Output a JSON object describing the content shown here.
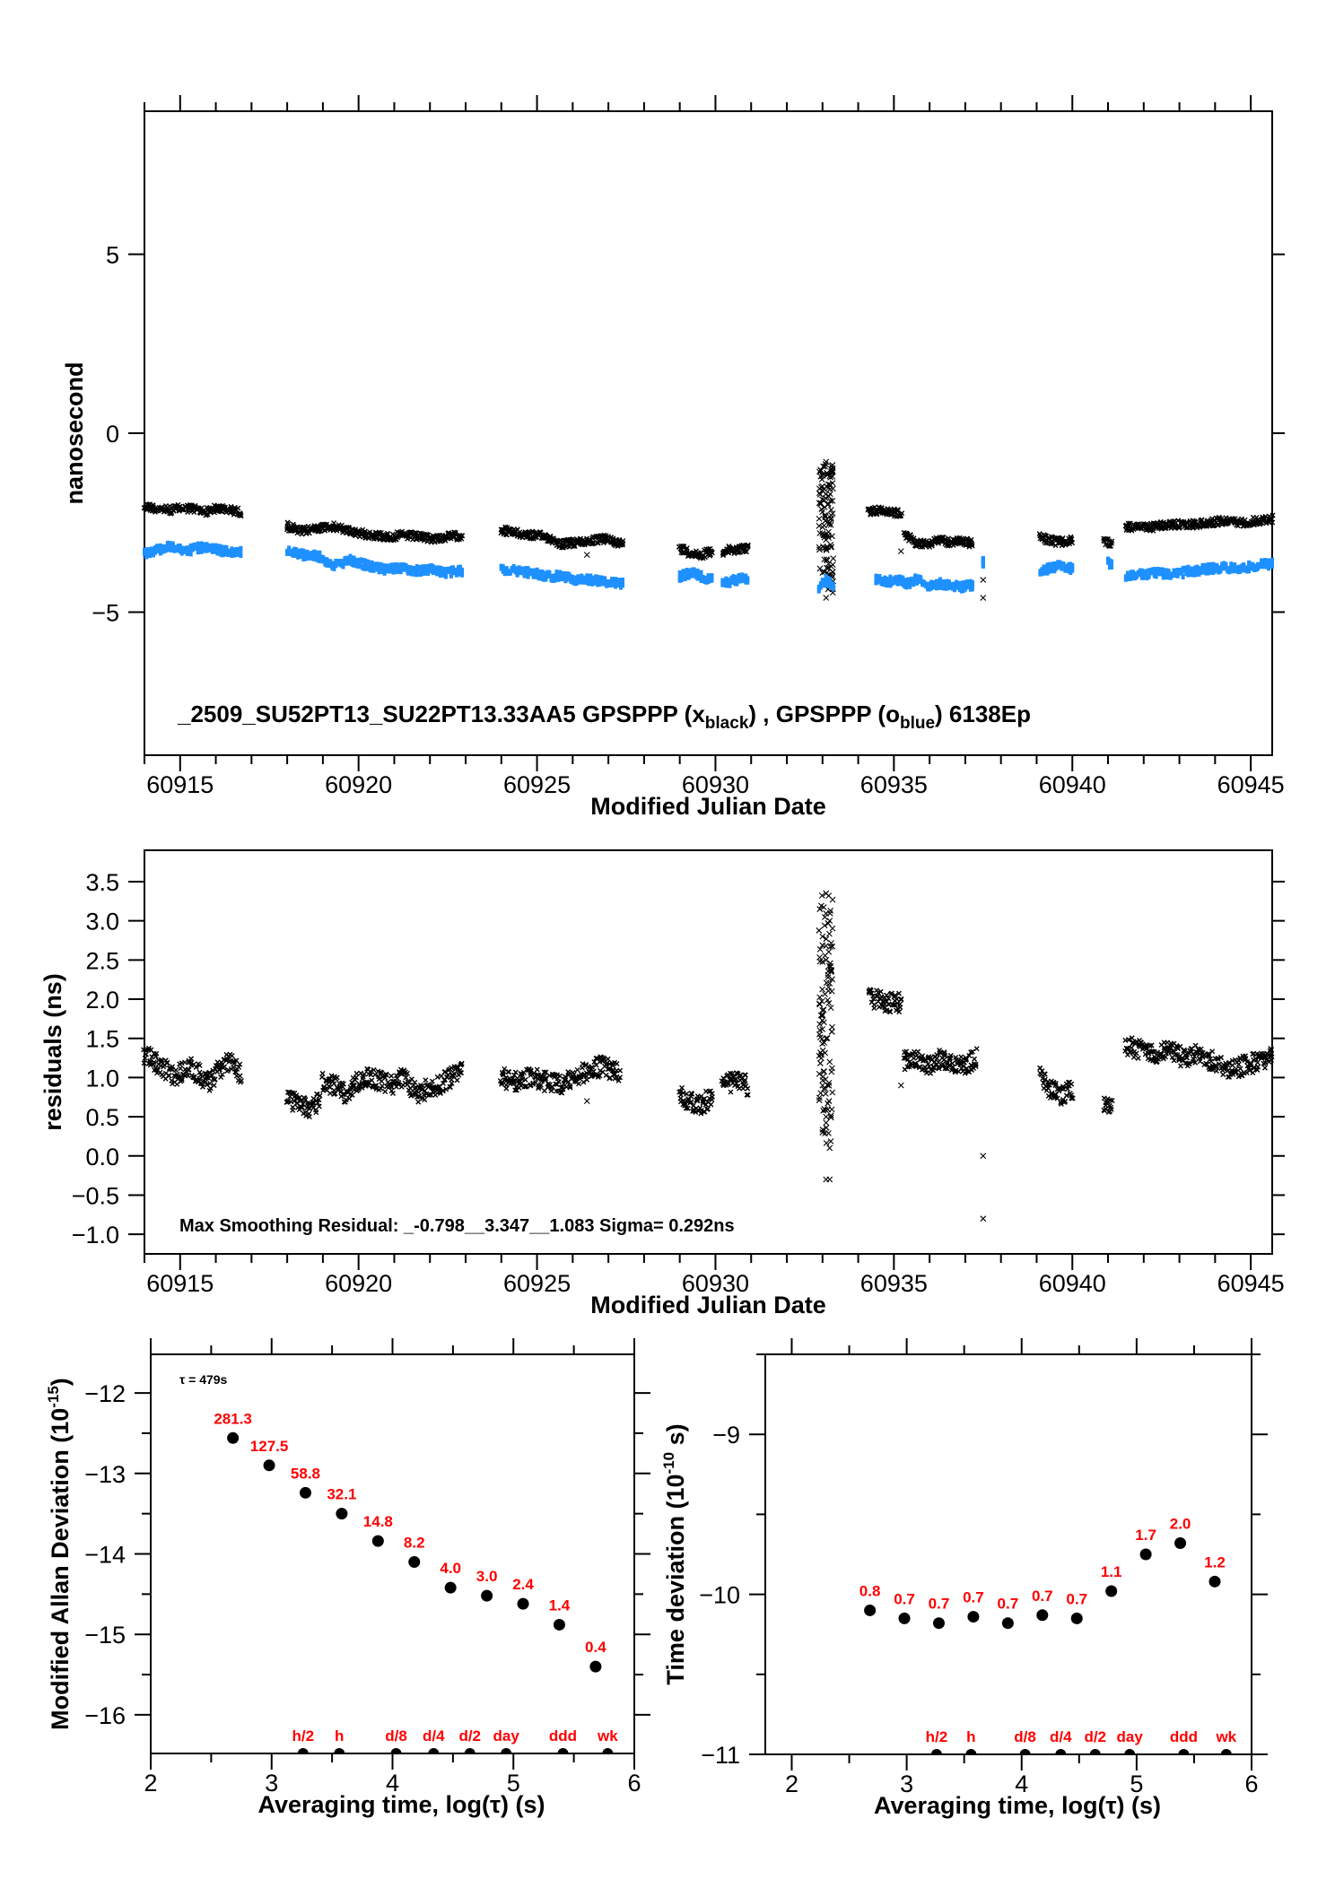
{
  "chart_data": [
    {
      "id": "phase",
      "type": "scatter",
      "title": "_2509_SU52PT13_SU22PT13.33AA5    GPSPPP (x_black) ,  GPSPPP (o_blue)  6138Ep",
      "annotation": {
        "prefix": "_2509_SU52PT13_SU22PT13.33AA5",
        "series1": "GPSPPP (",
        "series1_marker": "x",
        "series1_sub": "black",
        "sep": ") ,  GPSPPP (",
        "series2_marker": "o",
        "series2_sub": "blue",
        "suffix": ")  6138Ep"
      },
      "xlabel": "Modified Julian Date",
      "ylabel": "nanosecond",
      "xlim": [
        60914.0,
        60945.6
      ],
      "ylim": [
        -9,
        9
      ],
      "xticks": [
        60915,
        60920,
        60925,
        60930,
        60935,
        60940,
        60945
      ],
      "yticks": [
        -5,
        0,
        5
      ],
      "series": [
        {
          "name": "GPSPPP (x_black)",
          "marker": "x",
          "color": "#000000",
          "segments": [
            {
              "x0": 60914.0,
              "x1": 60916.7,
              "y": [
                -2.05,
                -2.1,
                -2.15,
                -2.1,
                -2.1,
                -2.2,
                -2.1,
                -2.15,
                -2.2
              ]
            },
            {
              "x0": 60918.0,
              "x1": 60922.9,
              "y": [
                -2.6,
                -2.75,
                -2.65,
                -2.6,
                -2.7,
                -2.8,
                -2.85,
                -2.9,
                -2.85,
                -2.9,
                -2.95,
                -2.9,
                -2.85
              ]
            },
            {
              "x0": 60924.0,
              "x1": 60927.4,
              "y": [
                -2.7,
                -2.8,
                -2.85,
                -2.9,
                -3.1,
                -3.05,
                -3.0,
                -2.95,
                -3.1
              ]
            },
            {
              "x0": 60929.0,
              "x1": 60929.9,
              "y": [
                -3.2,
                -3.35,
                -3.4,
                -3.3
              ]
            },
            {
              "x0": 60930.2,
              "x1": 60930.9,
              "y": [
                -3.3,
                -3.25,
                -3.2
              ]
            },
            {
              "x0": 60934.3,
              "x1": 60935.2,
              "y": [
                -2.2,
                -2.15,
                -2.2,
                -2.25
              ]
            },
            {
              "x0": 60935.3,
              "x1": 60937.2,
              "y": [
                -2.85,
                -3.05,
                -3.1,
                -3.0,
                -3.05,
                -3.0,
                -3.1
              ]
            },
            {
              "x0": 60939.1,
              "x1": 60940.0,
              "y": [
                -2.9,
                -3.0,
                -3.05,
                -3.0
              ]
            },
            {
              "x0": 60940.9,
              "x1": 60941.1,
              "y": [
                -3.0,
                -3.1
              ]
            },
            {
              "x0": 60941.5,
              "x1": 60945.6,
              "y": [
                -2.6,
                -2.65,
                -2.6,
                -2.55,
                -2.55,
                -2.5,
                -2.45,
                -2.5,
                -2.45,
                -2.4
              ]
            }
          ],
          "outliers": [
            [
              60933.1,
              -0.8
            ],
            [
              60933.2,
              -1.2
            ],
            [
              60933.0,
              -1.6
            ],
            [
              60933.15,
              -2.0
            ],
            [
              60933.2,
              -2.5
            ],
            [
              60933.0,
              -2.8
            ],
            [
              60933.1,
              -3.2
            ],
            [
              60933.3,
              -3.5
            ],
            [
              60933.0,
              -3.9
            ],
            [
              60933.2,
              -4.3
            ],
            [
              60933.1,
              -4.6
            ],
            [
              60935.2,
              -3.3
            ],
            [
              60937.5,
              -4.1
            ],
            [
              60937.5,
              -4.6
            ],
            [
              60926.4,
              -3.4
            ]
          ],
          "spike": {
            "x0": 60932.9,
            "x1": 60933.3,
            "y_top": -0.8,
            "y_bottom": -4.5
          }
        },
        {
          "name": "GPSPPP (o_blue)",
          "marker": "o",
          "color": "#1e90ff",
          "segments": [
            {
              "x0": 60914.0,
              "x1": 60916.7,
              "y": [
                -3.35,
                -3.25,
                -3.15,
                -3.3,
                -3.2,
                -3.25,
                -3.3,
                -3.3
              ]
            },
            {
              "x0": 60918.0,
              "x1": 60922.9,
              "y": [
                -3.3,
                -3.4,
                -3.45,
                -3.7,
                -3.55,
                -3.7,
                -3.8,
                -3.75,
                -3.85,
                -3.8,
                -3.9,
                -3.85
              ]
            },
            {
              "x0": 60924.0,
              "x1": 60927.4,
              "y": [
                -3.8,
                -3.85,
                -3.9,
                -4.0,
                -4.0,
                -4.1,
                -4.1,
                -4.15,
                -4.2
              ]
            },
            {
              "x0": 60929.0,
              "x1": 60929.9,
              "y": [
                -4.0,
                -3.9,
                -4.0,
                -4.1
              ]
            },
            {
              "x0": 60930.2,
              "x1": 60930.9,
              "y": [
                -4.2,
                -4.1,
                -4.05
              ]
            },
            {
              "x0": 60932.9,
              "x1": 60933.3,
              "y": [
                -4.3,
                -4.1,
                -4.25
              ]
            },
            {
              "x0": 60934.5,
              "x1": 60937.2,
              "y": [
                -4.1,
                -4.15,
                -4.1,
                -4.2,
                -4.05,
                -4.3,
                -4.2,
                -4.25,
                -4.3,
                -4.25
              ]
            },
            {
              "x0": 60937.5,
              "x1": 60937.5,
              "y": [
                -3.6
              ]
            },
            {
              "x0": 60939.1,
              "x1": 60940.0,
              "y": [
                -3.9,
                -3.75,
                -3.7,
                -3.8
              ]
            },
            {
              "x0": 60941.0,
              "x1": 60941.1,
              "y": [
                -3.6,
                -3.7
              ]
            },
            {
              "x0": 60941.5,
              "x1": 60945.6,
              "y": [
                -4.0,
                -3.95,
                -3.9,
                -3.95,
                -3.85,
                -3.8,
                -3.75,
                -3.8,
                -3.7,
                -3.65
              ]
            }
          ]
        }
      ]
    },
    {
      "id": "residuals",
      "type": "scatter",
      "xlabel": "Modified Julian Date",
      "ylabel": "residuals (ns)",
      "annotation": "Max Smoothing Residual: _-0.798__3.347__1.083  Sigma= 0.292ns",
      "xlim": [
        60914.0,
        60945.6
      ],
      "ylim": [
        -1.25,
        3.9
      ],
      "xticks": [
        60915,
        60920,
        60925,
        60930,
        60935,
        60940,
        60945
      ],
      "yticks": [
        -1.0,
        -0.5,
        0.0,
        0.5,
        1.0,
        1.5,
        2.0,
        2.5,
        3.0,
        3.5
      ],
      "ytick_labels": [
        "−1.0",
        "−0.5",
        "0.0",
        "0.5",
        "1.0",
        "1.5",
        "2.0",
        "2.5",
        "3.0",
        "3.5"
      ],
      "series": [
        {
          "name": "residuals",
          "marker": "x",
          "color": "#000000",
          "segments": [
            {
              "x0": 60914.0,
              "x1": 60916.7,
              "y": [
                1.3,
                1.2,
                1.1,
                1.0,
                1.15,
                1.05,
                0.95,
                1.1,
                1.2,
                1.05
              ]
            },
            {
              "x0": 60918.0,
              "x1": 60918.9,
              "y": [
                0.75,
                0.65,
                0.6,
                0.7
              ]
            },
            {
              "x0": 60919.0,
              "x1": 60922.9,
              "y": [
                0.95,
                0.9,
                0.8,
                0.95,
                1.0,
                0.95,
                0.9,
                1.0,
                0.8,
                0.85,
                0.9,
                1.0,
                1.15
              ]
            },
            {
              "x0": 60924.0,
              "x1": 60927.3,
              "y": [
                1.0,
                0.95,
                1.0,
                0.95,
                0.9,
                1.0,
                1.1,
                1.15,
                1.05
              ]
            },
            {
              "x0": 60929.0,
              "x1": 60929.9,
              "y": [
                0.8,
                0.7,
                0.65,
                0.75
              ]
            },
            {
              "x0": 60930.2,
              "x1": 60930.9,
              "y": [
                0.9,
                0.95,
                0.9
              ]
            },
            {
              "x0": 60934.3,
              "x1": 60935.2,
              "y": [
                2.0,
                2.0,
                1.95,
                1.95
              ]
            },
            {
              "x0": 60935.3,
              "x1": 60937.3,
              "y": [
                1.2,
                1.25,
                1.15,
                1.25,
                1.2,
                1.15,
                1.25
              ]
            },
            {
              "x0": 60939.1,
              "x1": 60940.0,
              "y": [
                1.0,
                0.85,
                0.75,
                0.85
              ]
            },
            {
              "x0": 60940.9,
              "x1": 60941.1,
              "y": [
                0.7,
                0.6
              ]
            },
            {
              "x0": 60941.5,
              "x1": 60945.6,
              "y": [
                1.4,
                1.35,
                1.3,
                1.35,
                1.25,
                1.3,
                1.2,
                1.1,
                1.15,
                1.2,
                1.25
              ]
            }
          ],
          "outliers": [
            [
              60933.1,
              3.35
            ],
            [
              60933.2,
              3.0
            ],
            [
              60933.0,
              2.8
            ],
            [
              60933.1,
              2.5
            ],
            [
              60933.2,
              2.2
            ],
            [
              60933.0,
              1.8
            ],
            [
              60933.1,
              1.5
            ],
            [
              60933.2,
              1.2
            ],
            [
              60933.0,
              0.9
            ],
            [
              60933.1,
              0.5
            ],
            [
              60933.0,
              0.3
            ],
            [
              60933.2,
              0.1
            ],
            [
              60933.1,
              -0.3
            ],
            [
              60933.2,
              -0.3
            ],
            [
              60937.5,
              0.0
            ],
            [
              60937.5,
              -0.8
            ],
            [
              60926.4,
              0.7
            ],
            [
              60935.2,
              0.9
            ]
          ],
          "spike": {
            "x0": 60932.9,
            "x1": 60933.3,
            "y_top": 3.35,
            "y_bottom": 0.1
          }
        }
      ]
    },
    {
      "id": "mdev",
      "type": "scatter",
      "xlabel": "Averaging time, log(τ) (s)",
      "ylabel": "Modified Allan Deviation (10⁻¹⁵)",
      "ylabel_main": "Modified Allan Deviation (10",
      "ylabel_sup": "-15",
      "ylabel_end": ")",
      "tau_label": "τ = 479s",
      "xlim": [
        2,
        6
      ],
      "ylim": [
        -16.48,
        -11.52
      ],
      "xticks": [
        2,
        3,
        4,
        5,
        6
      ],
      "yticks": [
        -16,
        -15,
        -14,
        -13,
        -12
      ],
      "ytick_labels": [
        "−16",
        "−15",
        "−14",
        "−13",
        "−12"
      ],
      "points": [
        {
          "x": 2.68,
          "y": -12.56,
          "label": "281.3"
        },
        {
          "x": 2.98,
          "y": -12.9,
          "label": "127.5"
        },
        {
          "x": 3.28,
          "y": -13.24,
          "label": "58.8"
        },
        {
          "x": 3.58,
          "y": -13.5,
          "label": "32.1"
        },
        {
          "x": 3.88,
          "y": -13.84,
          "label": "14.8"
        },
        {
          "x": 4.18,
          "y": -14.1,
          "label": "8.2"
        },
        {
          "x": 4.48,
          "y": -14.42,
          "label": "4.0"
        },
        {
          "x": 4.78,
          "y": -14.52,
          "label": "3.0"
        },
        {
          "x": 5.08,
          "y": -14.62,
          "label": "2.4"
        },
        {
          "x": 5.38,
          "y": -14.88,
          "label": "1.4"
        },
        {
          "x": 5.68,
          "y": -15.4,
          "label": "0.4"
        }
      ],
      "markers": [
        {
          "x": 3.26,
          "label": "h/2"
        },
        {
          "x": 3.56,
          "label": "h"
        },
        {
          "x": 4.03,
          "label": "d/8"
        },
        {
          "x": 4.34,
          "label": "d/4"
        },
        {
          "x": 4.64,
          "label": "d/2"
        },
        {
          "x": 4.94,
          "label": "day"
        },
        {
          "x": 5.41,
          "label": "ddd"
        },
        {
          "x": 5.78,
          "label": "wk"
        }
      ]
    },
    {
      "id": "tdev",
      "type": "scatter",
      "xlabel": "Averaging time, log(τ) (s)",
      "ylabel": "Time deviation (10⁻¹⁰ s)",
      "ylabel_main": "Time deviation (10",
      "ylabel_sup": "-10",
      "ylabel_end": " s)",
      "xlim": [
        1.77,
        6
      ],
      "ylim": [
        -11,
        -8.5
      ],
      "xticks": [
        2,
        3,
        4,
        5,
        6
      ],
      "yticks": [
        -11,
        -10,
        -9
      ],
      "ytick_labels": [
        "−11",
        "−10",
        "−9"
      ],
      "points": [
        {
          "x": 2.68,
          "y": -10.1,
          "label": "0.8"
        },
        {
          "x": 2.98,
          "y": -10.15,
          "label": "0.7"
        },
        {
          "x": 3.28,
          "y": -10.18,
          "label": "0.7"
        },
        {
          "x": 3.58,
          "y": -10.14,
          "label": "0.7"
        },
        {
          "x": 3.88,
          "y": -10.18,
          "label": "0.7"
        },
        {
          "x": 4.18,
          "y": -10.13,
          "label": "0.7"
        },
        {
          "x": 4.48,
          "y": -10.15,
          "label": "0.7"
        },
        {
          "x": 4.78,
          "y": -9.98,
          "label": "1.1"
        },
        {
          "x": 5.08,
          "y": -9.75,
          "label": "1.7"
        },
        {
          "x": 5.38,
          "y": -9.68,
          "label": "2.0"
        },
        {
          "x": 5.68,
          "y": -9.92,
          "label": "1.2"
        }
      ],
      "markers": [
        {
          "x": 3.26,
          "label": "h/2"
        },
        {
          "x": 3.56,
          "label": "h"
        },
        {
          "x": 4.03,
          "label": "d/8"
        },
        {
          "x": 4.34,
          "label": "d/4"
        },
        {
          "x": 4.64,
          "label": "d/2"
        },
        {
          "x": 4.94,
          "label": "day"
        },
        {
          "x": 5.41,
          "label": "ddd"
        },
        {
          "x": 5.78,
          "label": "wk"
        }
      ]
    }
  ],
  "colors": {
    "black_series": "#000000",
    "blue_series": "#1e90ff",
    "labels": "#ff0000"
  }
}
